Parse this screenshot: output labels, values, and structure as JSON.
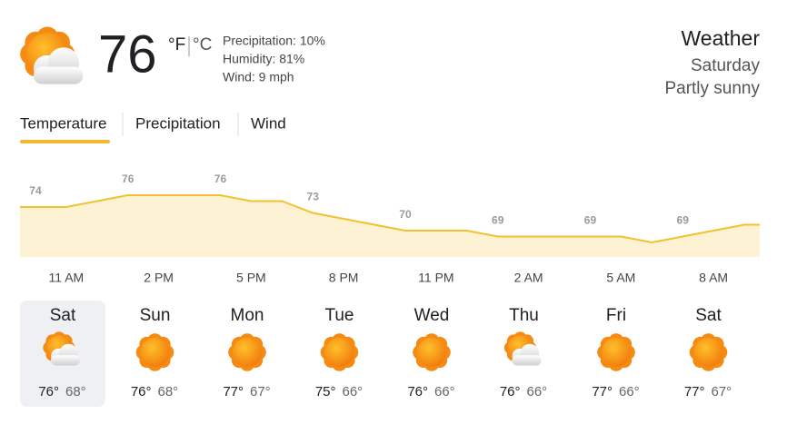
{
  "current": {
    "temp": "76",
    "unit_f": "°F",
    "unit_c": "°C",
    "precipitation": "Precipitation: 10%",
    "humidity": "Humidity: 81%",
    "wind": "Wind: 9 mph",
    "icon": "partly-sunny"
  },
  "header": {
    "title": "Weather",
    "day": "Saturday",
    "condition": "Partly sunny"
  },
  "tabs": [
    "Temperature",
    "Precipitation",
    "Wind"
  ],
  "active_tab": 0,
  "chart_data": {
    "type": "area",
    "color": "#f2c12e",
    "fill": "#fdf3d4",
    "categories": [
      null,
      "11 AM",
      null,
      null,
      "2 PM",
      null,
      null,
      "5 PM",
      null,
      null,
      "8 PM",
      null,
      null,
      "11 PM",
      null,
      null,
      "2 AM",
      null,
      null,
      "5 AM",
      null,
      null,
      "8 AM",
      null
    ],
    "values": [
      74,
      74,
      75,
      76,
      76,
      76,
      76,
      75,
      75,
      73,
      72,
      71,
      70,
      70,
      70,
      69,
      69,
      69,
      69,
      69,
      68,
      69,
      70,
      71
    ]
  },
  "days": [
    {
      "name": "Sat",
      "icon": "partly-sunny",
      "high": "76°",
      "low": "68°"
    },
    {
      "name": "Sun",
      "icon": "sunny",
      "high": "76°",
      "low": "68°"
    },
    {
      "name": "Mon",
      "icon": "sunny",
      "high": "77°",
      "low": "67°"
    },
    {
      "name": "Tue",
      "icon": "sunny",
      "high": "75°",
      "low": "66°"
    },
    {
      "name": "Wed",
      "icon": "sunny",
      "high": "76°",
      "low": "66°"
    },
    {
      "name": "Thu",
      "icon": "partly-sunny",
      "high": "76°",
      "low": "66°"
    },
    {
      "name": "Fri",
      "icon": "sunny",
      "high": "77°",
      "low": "66°"
    },
    {
      "name": "Sat",
      "icon": "sunny",
      "high": "77°",
      "low": "67°"
    }
  ],
  "selected_day": 0
}
